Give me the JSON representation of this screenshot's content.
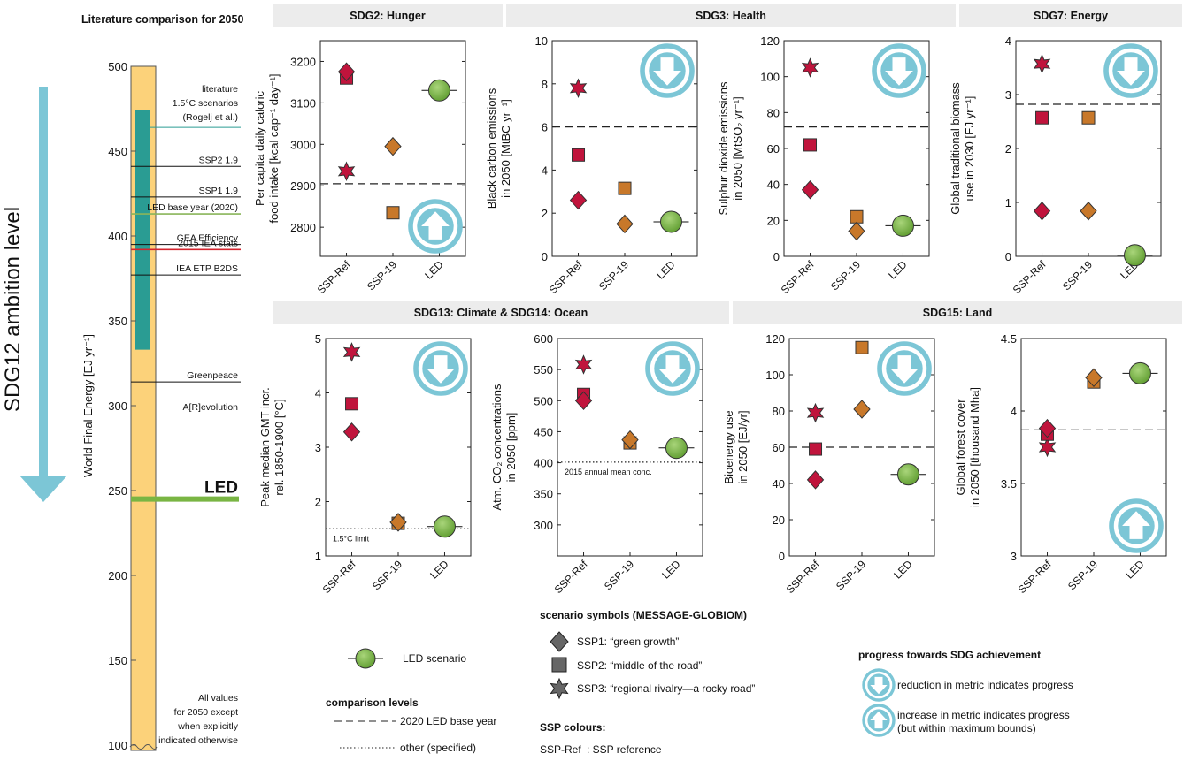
{
  "heading": "Literature comparison for 2050",
  "ambition_label": "SDG12 ambition level",
  "colors": {
    "ssp_ref": "#c0143c",
    "ssp19": "#c8782a",
    "led": "#79b543",
    "bar": "#fcd27a",
    "teal": "#2a9c93",
    "banner": "#ececec",
    "arrow": "#7cc6d6",
    "iea": "#d4252f",
    "led_base": "#8ab55a"
  },
  "left_axis": {
    "ylabel": "World Final Energy [EJ yr⁻¹]",
    "ticks": [
      "500",
      "450",
      "400",
      "350",
      "300",
      "250",
      "200",
      "150",
      "100"
    ],
    "range": [
      100,
      500
    ],
    "teal_band": [
      333,
      474
    ],
    "refs": [
      {
        "label": "SSP2 1.9",
        "value": 441,
        "color": "#111"
      },
      {
        "label": "SSP1 1.9",
        "value": 423,
        "color": "#111"
      },
      {
        "label": "LED base year (2020)",
        "value": 413,
        "color": "#8ab55a"
      },
      {
        "label": "GEA Efficiency",
        "value": 395,
        "color": "#111"
      },
      {
        "label": "2015 IEA stats",
        "value": 392,
        "color": "#d4252f"
      },
      {
        "label": "IEA ETP B2DS",
        "value": 377,
        "color": "#111"
      },
      {
        "label": "Greenpeace",
        "label2": "A[R]evolution",
        "value": 314,
        "color": "#111"
      }
    ],
    "literature": {
      "line1": "literature",
      "line2": "1.5°C scenarios",
      "line3": "(Rogelj et al.)",
      "value": 464
    },
    "led": {
      "label": "LED",
      "value": 245
    },
    "note": [
      "All values",
      "for 2050 except",
      "when explicitly",
      "indicated otherwise"
    ]
  },
  "banners": [
    "SDG2: Hunger",
    "SDG3: Health",
    "SDG7: Energy",
    "SDG13: Climate & SDG14: Ocean",
    "SDG15: Land"
  ],
  "categories": [
    "SSP-Ref",
    "SSP-19",
    "LED"
  ],
  "chart_data": [
    {
      "type": "scatter",
      "ylabel1": "Per capita daily caloric",
      "ylabel2": "food intake [kcal cap⁻¹ day⁻¹]",
      "ylim": [
        2730,
        3250
      ],
      "ticks": [
        "2800",
        "2900",
        "3000",
        "3100",
        "3200"
      ],
      "baseline": 2905,
      "progress": "increase",
      "points": [
        {
          "cat": "SSP-Ref",
          "shape": "diamond",
          "value": 3175
        },
        {
          "cat": "SSP-Ref",
          "shape": "square",
          "value": 3160
        },
        {
          "cat": "SSP-Ref",
          "shape": "star",
          "value": 2935
        },
        {
          "cat": "SSP-19",
          "shape": "diamond",
          "value": 2995
        },
        {
          "cat": "SSP-19",
          "shape": "square",
          "value": 2835
        },
        {
          "cat": "LED",
          "shape": "circle",
          "value": 3130
        }
      ]
    },
    {
      "type": "scatter",
      "ylabel1": "Black carbon emissions",
      "ylabel2": "in 2050 [MtBC yr⁻¹]",
      "ylim": [
        0,
        10
      ],
      "ticks": [
        "0",
        "2",
        "4",
        "6",
        "8",
        "10"
      ],
      "baseline": 6,
      "progress": "reduction",
      "points": [
        {
          "cat": "SSP-Ref",
          "shape": "star",
          "value": 7.8
        },
        {
          "cat": "SSP-Ref",
          "shape": "square",
          "value": 4.7
        },
        {
          "cat": "SSP-Ref",
          "shape": "diamond",
          "value": 2.6
        },
        {
          "cat": "SSP-19",
          "shape": "square",
          "value": 3.15
        },
        {
          "cat": "SSP-19",
          "shape": "diamond",
          "value": 1.5
        },
        {
          "cat": "LED",
          "shape": "circle",
          "value": 1.6
        }
      ]
    },
    {
      "type": "scatter",
      "ylabel1": "Sulphur dioxide emissions",
      "ylabel2": "in 2050 [MtSO₂ yr⁻¹]",
      "ylim": [
        0,
        120
      ],
      "ticks": [
        "0",
        "20",
        "40",
        "60",
        "80",
        "100",
        "120"
      ],
      "baseline": 72,
      "progress": "reduction",
      "points": [
        {
          "cat": "SSP-Ref",
          "shape": "star",
          "value": 105
        },
        {
          "cat": "SSP-Ref",
          "shape": "square",
          "value": 62
        },
        {
          "cat": "SSP-Ref",
          "shape": "diamond",
          "value": 37
        },
        {
          "cat": "SSP-19",
          "shape": "square",
          "value": 22
        },
        {
          "cat": "SSP-19",
          "shape": "diamond",
          "value": 14
        },
        {
          "cat": "LED",
          "shape": "circle",
          "value": 17
        }
      ]
    },
    {
      "type": "scatter",
      "ylabel1": "Global traditional biomass",
      "ylabel2": "use in 2030 [EJ yr⁻¹]",
      "ylim": [
        0,
        4
      ],
      "ticks": [
        "0",
        "1",
        "2",
        "3",
        "4"
      ],
      "baseline": 2.82,
      "progress": "reduction",
      "points": [
        {
          "cat": "SSP-Ref",
          "shape": "star",
          "value": 3.57
        },
        {
          "cat": "SSP-Ref",
          "shape": "square",
          "value": 2.57
        },
        {
          "cat": "SSP-Ref",
          "shape": "diamond",
          "value": 0.84
        },
        {
          "cat": "SSP-19",
          "shape": "square",
          "value": 2.57
        },
        {
          "cat": "SSP-19",
          "shape": "diamond",
          "value": 0.84
        },
        {
          "cat": "LED",
          "shape": "circle",
          "value": 0.02
        }
      ]
    },
    {
      "type": "scatter",
      "ylabel1": "Peak median GMT incr.",
      "ylabel2": "rel. 1850-1900 [°C]",
      "ylim": [
        1,
        5
      ],
      "ticks": [
        "1",
        "2",
        "3",
        "4",
        "5"
      ],
      "baseline": 1.5,
      "dotted": true,
      "annotation": "1.5°C limit",
      "progress": "reduction",
      "points": [
        {
          "cat": "SSP-Ref",
          "shape": "star",
          "value": 4.75
        },
        {
          "cat": "SSP-Ref",
          "shape": "square",
          "value": 3.8
        },
        {
          "cat": "SSP-Ref",
          "shape": "diamond",
          "value": 3.28
        },
        {
          "cat": "SSP-19",
          "shape": "diamond",
          "value": 1.62
        },
        {
          "cat": "SSP-19",
          "shape": "square",
          "value": 1.6
        },
        {
          "cat": "LED",
          "shape": "circle",
          "value": 1.54
        }
      ]
    },
    {
      "type": "scatter",
      "ylabel1": "Atm. CO₂ concentrations",
      "ylabel2": "in 2050 [ppm]",
      "ylim": [
        250,
        600
      ],
      "ticks": [
        "300",
        "350",
        "400",
        "450",
        "500",
        "550",
        "600"
      ],
      "baseline": 401,
      "dotted": true,
      "annotation": "2015 annual mean conc.",
      "progress": "reduction",
      "points": [
        {
          "cat": "SSP-Ref",
          "shape": "star",
          "value": 558
        },
        {
          "cat": "SSP-Ref",
          "shape": "square",
          "value": 510
        },
        {
          "cat": "SSP-Ref",
          "shape": "diamond",
          "value": 500
        },
        {
          "cat": "SSP-19",
          "shape": "diamond",
          "value": 437
        },
        {
          "cat": "SSP-19",
          "shape": "square",
          "value": 432
        },
        {
          "cat": "LED",
          "shape": "circle",
          "value": 424
        }
      ]
    },
    {
      "type": "scatter",
      "ylabel1": "Bioenergy use",
      "ylabel2": "in 2050 [EJ/yr]",
      "ylim": [
        0,
        120
      ],
      "ticks": [
        "0",
        "20",
        "40",
        "60",
        "80",
        "100",
        "120"
      ],
      "baseline": 60,
      "progress": "reduction",
      "points": [
        {
          "cat": "SSP-Ref",
          "shape": "star",
          "value": 79
        },
        {
          "cat": "SSP-Ref",
          "shape": "square",
          "value": 59
        },
        {
          "cat": "SSP-Ref",
          "shape": "diamond",
          "value": 42
        },
        {
          "cat": "SSP-19",
          "shape": "square",
          "value": 115
        },
        {
          "cat": "SSP-19",
          "shape": "diamond",
          "value": 81
        },
        {
          "cat": "LED",
          "shape": "circle",
          "value": 45
        }
      ]
    },
    {
      "type": "scatter",
      "ylabel1": "Global forest cover",
      "ylabel2": "in 2050 [thousand Mha]",
      "ylim": [
        3,
        4.5
      ],
      "ticks": [
        "3",
        "3.5",
        "4",
        "4.5"
      ],
      "baseline": 3.87,
      "progress": "increase",
      "points": [
        {
          "cat": "SSP-Ref",
          "shape": "diamond",
          "value": 3.88
        },
        {
          "cat": "SSP-Ref",
          "shape": "square",
          "value": 3.84
        },
        {
          "cat": "SSP-Ref",
          "shape": "star",
          "value": 3.75
        },
        {
          "cat": "SSP-19",
          "shape": "diamond",
          "value": 4.23
        },
        {
          "cat": "SSP-19",
          "shape": "square",
          "value": 4.2
        },
        {
          "cat": "LED",
          "shape": "circle",
          "value": 4.26
        }
      ]
    }
  ],
  "legend": {
    "led": "LED scenario",
    "comparison_title": "comparison levels",
    "base_year": "2020 LED base year",
    "other": "other (specified)",
    "symbols_title": "scenario symbols (MESSAGE-GLOBIOM)",
    "ssp1": "SSP1: “green growth”",
    "ssp2": "SSP2: “middle of the road”",
    "ssp3": "SSP3: “regional rivalry—a rocky road”",
    "colours_title": "SSP colours:",
    "ssp_ref_key": "SSP-Ref",
    "ssp_ref_desc": ": SSP reference",
    "progress_title": "progress towards SDG achievement",
    "reduction": "reduction in metric indicates progress",
    "increase1": "increase in metric indicates progress",
    "increase2": "(but within maximum bounds)"
  }
}
